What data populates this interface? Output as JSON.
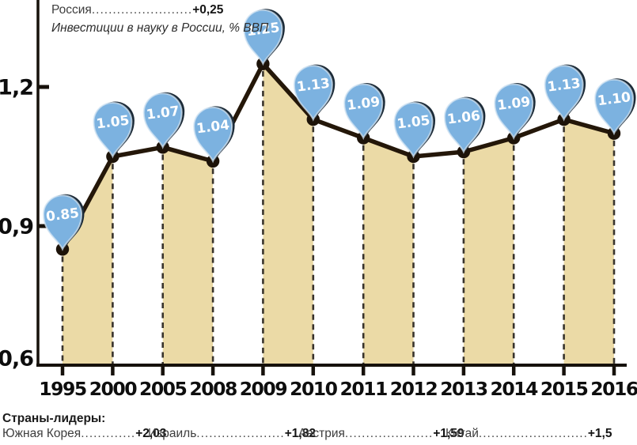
{
  "header": {
    "series_name": "Россия",
    "series_dots": "........................",
    "series_value": "+0,25",
    "subtitle": "Инвестиции в науку в России, % ВВП"
  },
  "chart_data": {
    "type": "line",
    "title": "Инвестиции в науку в России, % ВВП",
    "annotation": "Россия +0,25",
    "categories": [
      "1995",
      "2000",
      "2005",
      "2008",
      "2009",
      "2010",
      "2011",
      "2012",
      "2013",
      "2014",
      "2015",
      "2016"
    ],
    "values": [
      0.85,
      1.05,
      1.07,
      1.04,
      1.25,
      1.13,
      1.09,
      1.05,
      1.06,
      1.09,
      1.13,
      1.1
    ],
    "point_labels": [
      "0.85",
      "1.05",
      "1.07",
      "1.04",
      "1.25",
      "1.13",
      "1.09",
      "1.05",
      "1.06",
      "1.09",
      "1.13",
      "1.10"
    ],
    "yticks": [
      {
        "value": 1.2,
        "label": "1,2"
      },
      {
        "value": 0.9,
        "label": "0,9"
      },
      {
        "value": 0.6,
        "label": "0,6"
      }
    ],
    "ylim": [
      0.6,
      1.32
    ],
    "xlabel": "",
    "ylabel": "% ВВП",
    "grid": "dashed vertical droplines at each point",
    "legend_position": "none",
    "shaded_band_pairs": [
      [
        0,
        1
      ],
      [
        2,
        3
      ],
      [
        4,
        5
      ],
      [
        6,
        7
      ],
      [
        8,
        9
      ],
      [
        10,
        11
      ]
    ],
    "colors": {
      "pin_fill": "#7cb2e0",
      "pin_rim": "#d3e4f3",
      "pin_shadow": "#1c2b38",
      "pin_text": "#ffffff",
      "band_fill": "#ebdaa6",
      "line": "#241709",
      "point": "#1d1309",
      "dropline": "#38332c",
      "axis": "#16110b"
    }
  },
  "footer": {
    "title": "Страны-лидеры:",
    "items": [
      {
        "name": "Южная Корея",
        "dots": ".............",
        "value": "+2,03"
      },
      {
        "name": "Израиль",
        "dots": ".....................",
        "value": "+1,82"
      },
      {
        "name": "Австрия",
        "dots": ".....................",
        "value": "+1,59"
      },
      {
        "name": "Китай",
        "dots": "..........................",
        "value": "+1,5"
      }
    ]
  }
}
